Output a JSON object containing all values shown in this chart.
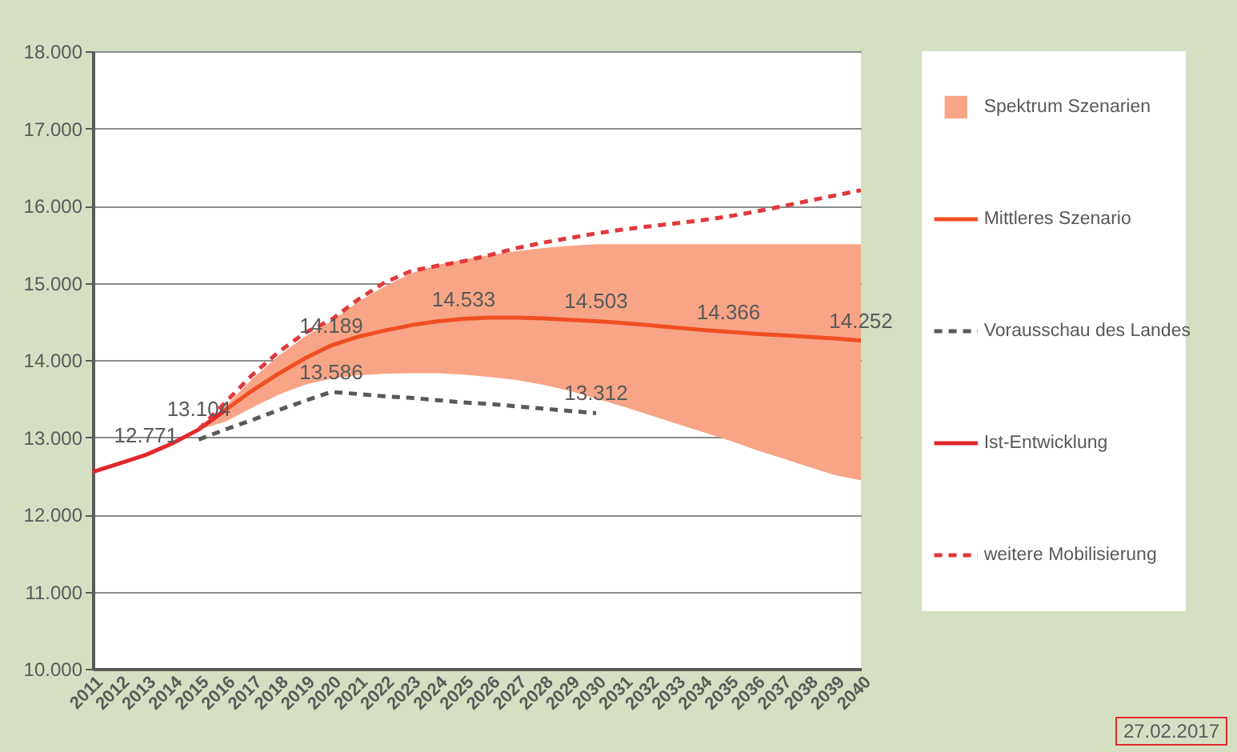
{
  "chart_data": {
    "type": "line",
    "categories": [
      "2011",
      "2012",
      "2013",
      "2014",
      "2015",
      "2016",
      "2017",
      "2018",
      "2019",
      "2020",
      "2021",
      "2022",
      "2023",
      "2024",
      "2025",
      "2026",
      "2027",
      "2028",
      "2029",
      "2030",
      "2031",
      "2032",
      "2033",
      "2034",
      "2035",
      "2036",
      "2037",
      "2038",
      "2039",
      "2040"
    ],
    "series": [
      {
        "name": "Spektrum Szenarien",
        "type": "area",
        "color": "#f7a586",
        "values": [
          null,
          null,
          null,
          null,
          null,
          null,
          null,
          null,
          null,
          null,
          null,
          null,
          null,
          null,
          null,
          null,
          null,
          null,
          null,
          null,
          null,
          null,
          null,
          null,
          null,
          null,
          null,
          null,
          null,
          null
        ],
        "upper": [
          null,
          null,
          null,
          null,
          13100,
          13400,
          13750,
          14050,
          14300,
          14500,
          14750,
          14950,
          15120,
          15230,
          15300,
          15360,
          15410,
          15450,
          15480,
          15500,
          15500,
          15500,
          15500,
          15500,
          15500,
          15500,
          15500,
          15500,
          15500,
          15500
        ],
        "lower": [
          null,
          null,
          null,
          null,
          13100,
          13200,
          13380,
          13550,
          13680,
          13760,
          13800,
          13820,
          13830,
          13830,
          13810,
          13780,
          13740,
          13680,
          13600,
          13500,
          13400,
          13290,
          13180,
          13070,
          12960,
          12840,
          12730,
          12620,
          12510,
          12440
        ]
      },
      {
        "name": "Mittleres Szenario",
        "color": "#f04e23",
        "line_style": "solid",
        "values": [
          null,
          null,
          null,
          null,
          13104,
          13350,
          13600,
          13820,
          14020,
          14189,
          14300,
          14380,
          14450,
          14500,
          14533,
          14550,
          14550,
          14540,
          14520,
          14503,
          14480,
          14450,
          14420,
          14390,
          14366,
          14340,
          14320,
          14300,
          14280,
          14252
        ],
        "value_labels": [
          null,
          null,
          null,
          null,
          "13.104",
          null,
          null,
          null,
          null,
          "14.189",
          null,
          null,
          null,
          null,
          "14.533",
          null,
          null,
          null,
          null,
          "14.503",
          null,
          null,
          null,
          null,
          "14.366",
          null,
          null,
          null,
          null,
          "14.252"
        ]
      },
      {
        "name": "Vorausschau des Landes",
        "color": "#595959",
        "line_style": "dashed",
        "values": [
          null,
          null,
          null,
          null,
          12970,
          13100,
          13220,
          13350,
          13470,
          13586,
          13560,
          13530,
          13510,
          13480,
          13450,
          13430,
          13400,
          13370,
          13340,
          13312,
          null,
          null,
          null,
          null,
          null,
          null,
          null,
          null,
          null,
          null
        ],
        "value_labels": [
          null,
          null,
          null,
          null,
          null,
          null,
          null,
          null,
          null,
          "13.586",
          null,
          null,
          null,
          null,
          null,
          null,
          null,
          null,
          null,
          "13.312",
          null,
          null,
          null,
          null,
          null,
          null,
          null,
          null,
          null,
          null
        ]
      },
      {
        "name": "Ist-Entwicklung",
        "color": "#e3262a",
        "line_style": "solid",
        "values": [
          12550,
          12660,
          12771,
          12920,
          13100,
          13350,
          null,
          null,
          null,
          null,
          null,
          null,
          null,
          null,
          null,
          null,
          null,
          null,
          null,
          null,
          null,
          null,
          null,
          null,
          null,
          null,
          null,
          null,
          null,
          null
        ],
        "value_labels": [
          null,
          null,
          "12.771",
          null,
          null,
          null,
          null,
          null,
          null,
          null,
          null,
          null,
          null,
          null,
          null,
          null,
          null,
          null,
          null,
          null,
          null,
          null,
          null,
          null,
          null,
          null,
          null,
          null,
          null,
          null
        ]
      },
      {
        "name": "weitere Mobilisierung",
        "color": "#e0393c",
        "line_style": "dashed",
        "values": [
          null,
          null,
          null,
          null,
          13100,
          13450,
          13800,
          14100,
          14350,
          14520,
          14780,
          15000,
          15150,
          15220,
          15280,
          15360,
          15450,
          15520,
          15580,
          15640,
          15690,
          15730,
          15770,
          15810,
          15860,
          15920,
          15990,
          16060,
          16130,
          16200
        ]
      }
    ],
    "ylim": [
      10000,
      18000
    ],
    "yticks": [
      {
        "value": 10000,
        "label": "10.000"
      },
      {
        "value": 11000,
        "label": "11.000"
      },
      {
        "value": 12000,
        "label": "12.000"
      },
      {
        "value": 13000,
        "label": "13.000"
      },
      {
        "value": 14000,
        "label": "14.000"
      },
      {
        "value": 15000,
        "label": "15.000"
      },
      {
        "value": 16000,
        "label": "16.000"
      },
      {
        "value": 17000,
        "label": "17.000"
      },
      {
        "value": 18000,
        "label": "18.000"
      }
    ],
    "grid": "y",
    "legend": "right",
    "marker": "none",
    "annotations": [
      "27.02.2017"
    ]
  }
}
